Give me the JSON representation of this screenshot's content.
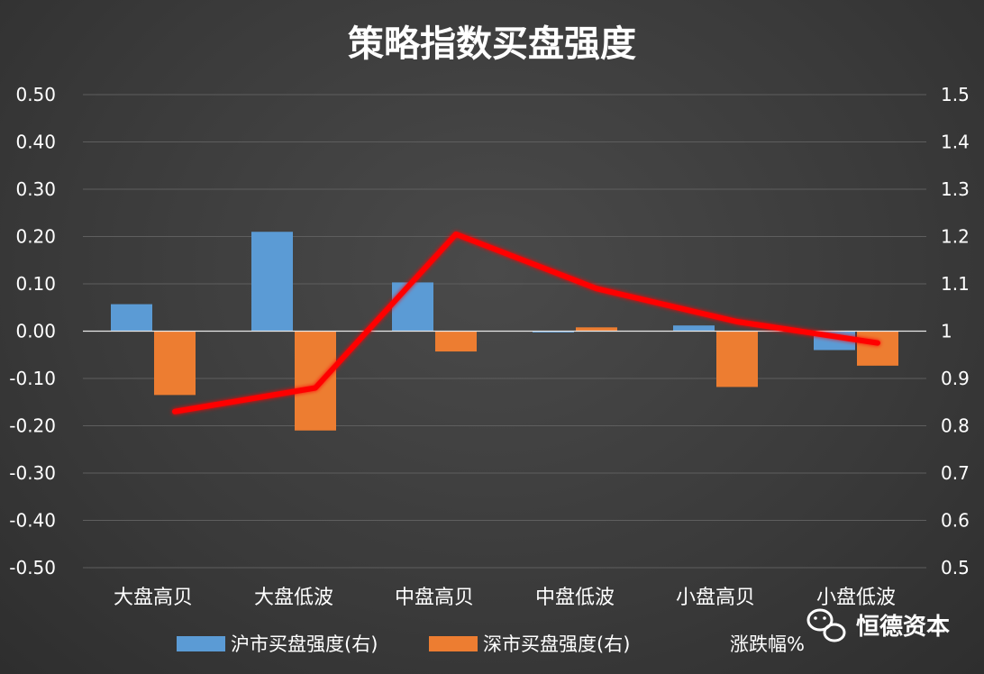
{
  "chart_data": {
    "type": "bar",
    "title": "策略指数买盘强度",
    "categories": [
      "大盘高贝",
      "大盘低波",
      "中盘高贝",
      "中盘低波",
      "小盘高贝",
      "小盘低波"
    ],
    "y_left": {
      "ticks": [
        "0.50",
        "0.40",
        "0.30",
        "0.20",
        "0.10",
        "0.00",
        "-0.10",
        "-0.20",
        "-0.30",
        "-0.40",
        "-0.50"
      ],
      "ylim": [
        -0.5,
        0.5
      ]
    },
    "y_right": {
      "ticks": [
        "1.5",
        "1.4",
        "1.3",
        "1.2",
        "1.1",
        "1",
        "0.9",
        "0.8",
        "0.7",
        "0.6",
        "0.5"
      ],
      "ylim": [
        0.5,
        1.5
      ]
    },
    "series": [
      {
        "name": "沪市买盘强度(右)",
        "type": "bar",
        "axis": "left",
        "color": "#5b9bd5",
        "values": [
          0.057,
          0.21,
          0.103,
          -0.002,
          0.012,
          -0.04
        ]
      },
      {
        "name": "深市买盘强度(右)",
        "type": "bar",
        "axis": "left",
        "color": "#ed7d31",
        "values": [
          -0.135,
          -0.21,
          -0.043,
          0.008,
          -0.118,
          -0.073
        ]
      },
      {
        "name": "涨跌幅%",
        "type": "line",
        "axis": "right",
        "color": "#ff0000",
        "values": [
          0.83,
          0.88,
          1.205,
          1.09,
          1.02,
          0.975
        ]
      }
    ],
    "legend_position": "bottom",
    "grid": true
  },
  "watermark": {
    "text": "恒德资本",
    "icon": "wechat-icon"
  }
}
